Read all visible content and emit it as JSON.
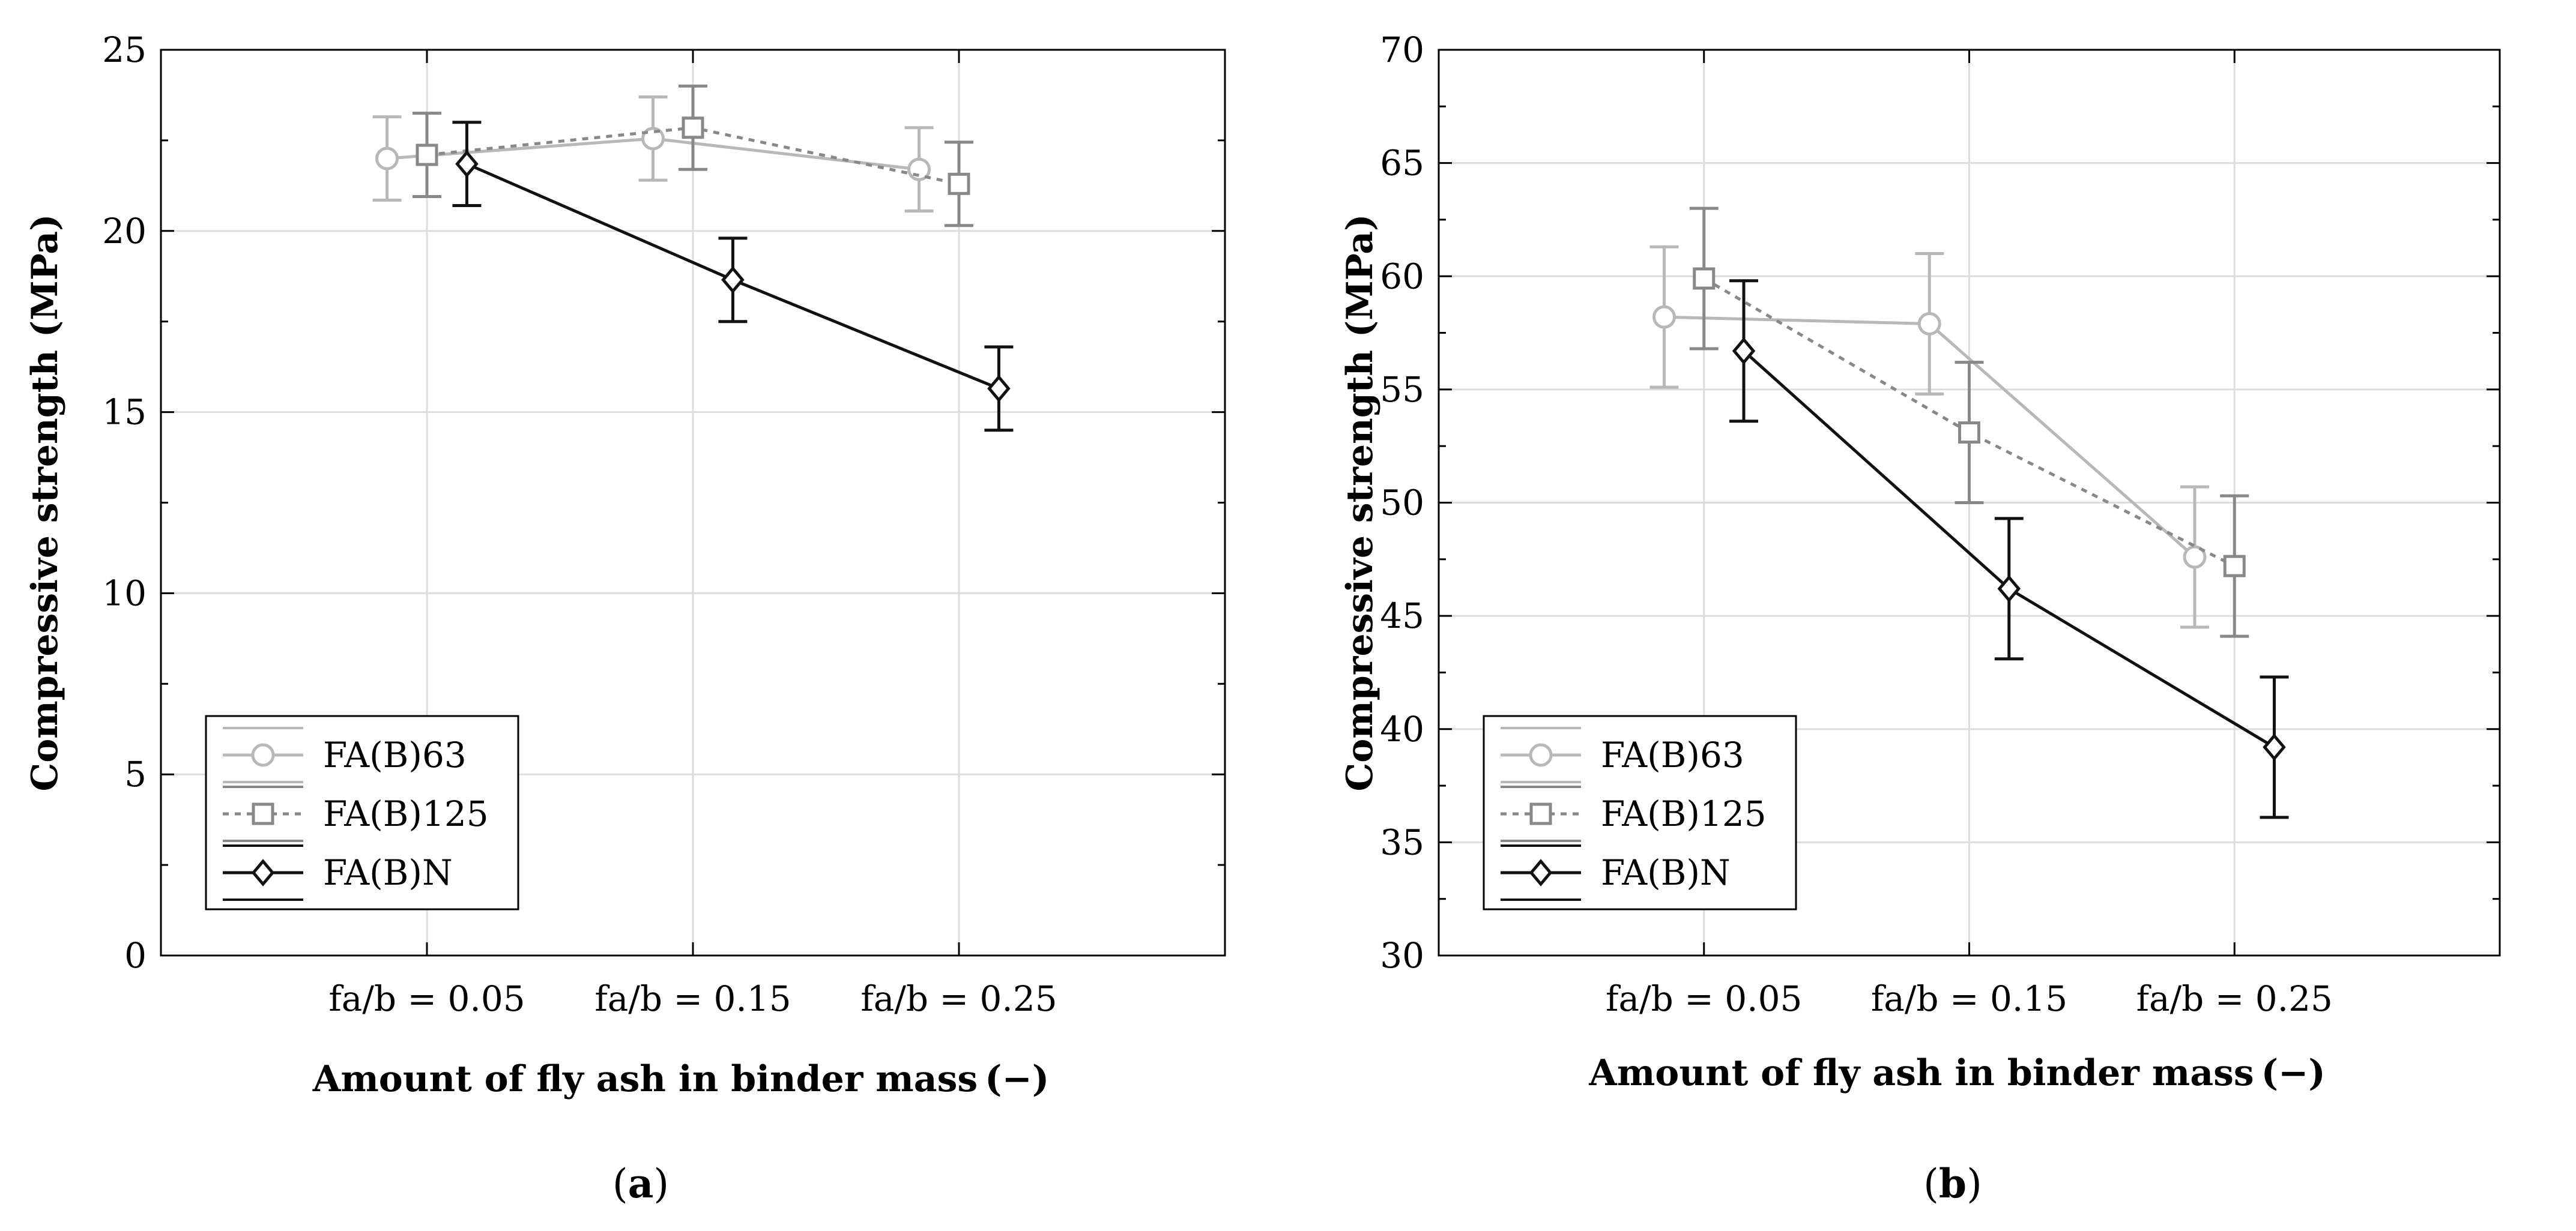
{
  "chart_data": [
    {
      "type": "line",
      "panel_label": "a",
      "xlabel": "Amount of fly ash in binder mass",
      "xlabel_unit": "(−)",
      "ylabel": "Compressive strength (MPa)",
      "ylim": [
        0,
        25
      ],
      "yticks": [
        "0",
        "5",
        "10",
        "15",
        "20",
        "25"
      ],
      "categories": [
        "fa/b = 0.05",
        "fa/b = 0.15",
        "fa/b = 0.25"
      ],
      "grid": true,
      "legend_position": "bottom-left",
      "series": [
        {
          "name": "FA(B)63",
          "marker": "circle",
          "color": "#b8b8b8",
          "dash": "solid",
          "offset": -0.15,
          "values": [
            22.0,
            22.55,
            21.7
          ],
          "errors": [
            1.15,
            1.15,
            1.15
          ]
        },
        {
          "name": "FA(B)125",
          "marker": "square",
          "color": "#888888",
          "dash": "dotted",
          "offset": 0.0,
          "values": [
            22.1,
            22.85,
            21.3
          ],
          "errors": [
            1.15,
            1.15,
            1.15
          ]
        },
        {
          "name": "FA(B)N",
          "marker": "diamond",
          "color": "#111111",
          "dash": "solid",
          "offset": 0.15,
          "values": [
            21.85,
            18.65,
            15.65
          ],
          "errors": [
            1.15,
            1.15,
            1.15
          ]
        }
      ]
    },
    {
      "type": "line",
      "panel_label": "b",
      "xlabel": "Amount of fly ash in binder mass",
      "xlabel_unit": "(−)",
      "ylabel": "Compressive strength (MPa)",
      "ylim": [
        30,
        70
      ],
      "yticks": [
        "30",
        "35",
        "40",
        "45",
        "50",
        "55",
        "60",
        "65",
        "70"
      ],
      "categories": [
        "fa/b = 0.05",
        "fa/b = 0.15",
        "fa/b = 0.25"
      ],
      "grid": true,
      "legend_position": "bottom-left",
      "series": [
        {
          "name": "FA(B)63",
          "marker": "circle",
          "color": "#b8b8b8",
          "dash": "solid",
          "offset": -0.15,
          "values": [
            58.2,
            57.9,
            47.6
          ],
          "errors": [
            3.1,
            3.1,
            3.1
          ]
        },
        {
          "name": "FA(B)125",
          "marker": "square",
          "color": "#888888",
          "dash": "dotted",
          "offset": 0.0,
          "values": [
            59.9,
            53.1,
            47.2
          ],
          "errors": [
            3.1,
            3.1,
            3.1
          ]
        },
        {
          "name": "FA(B)N",
          "marker": "diamond",
          "color": "#111111",
          "dash": "solid",
          "offset": 0.15,
          "values": [
            56.7,
            46.2,
            39.2
          ],
          "errors": [
            3.1,
            3.1,
            3.1
          ]
        }
      ]
    }
  ]
}
